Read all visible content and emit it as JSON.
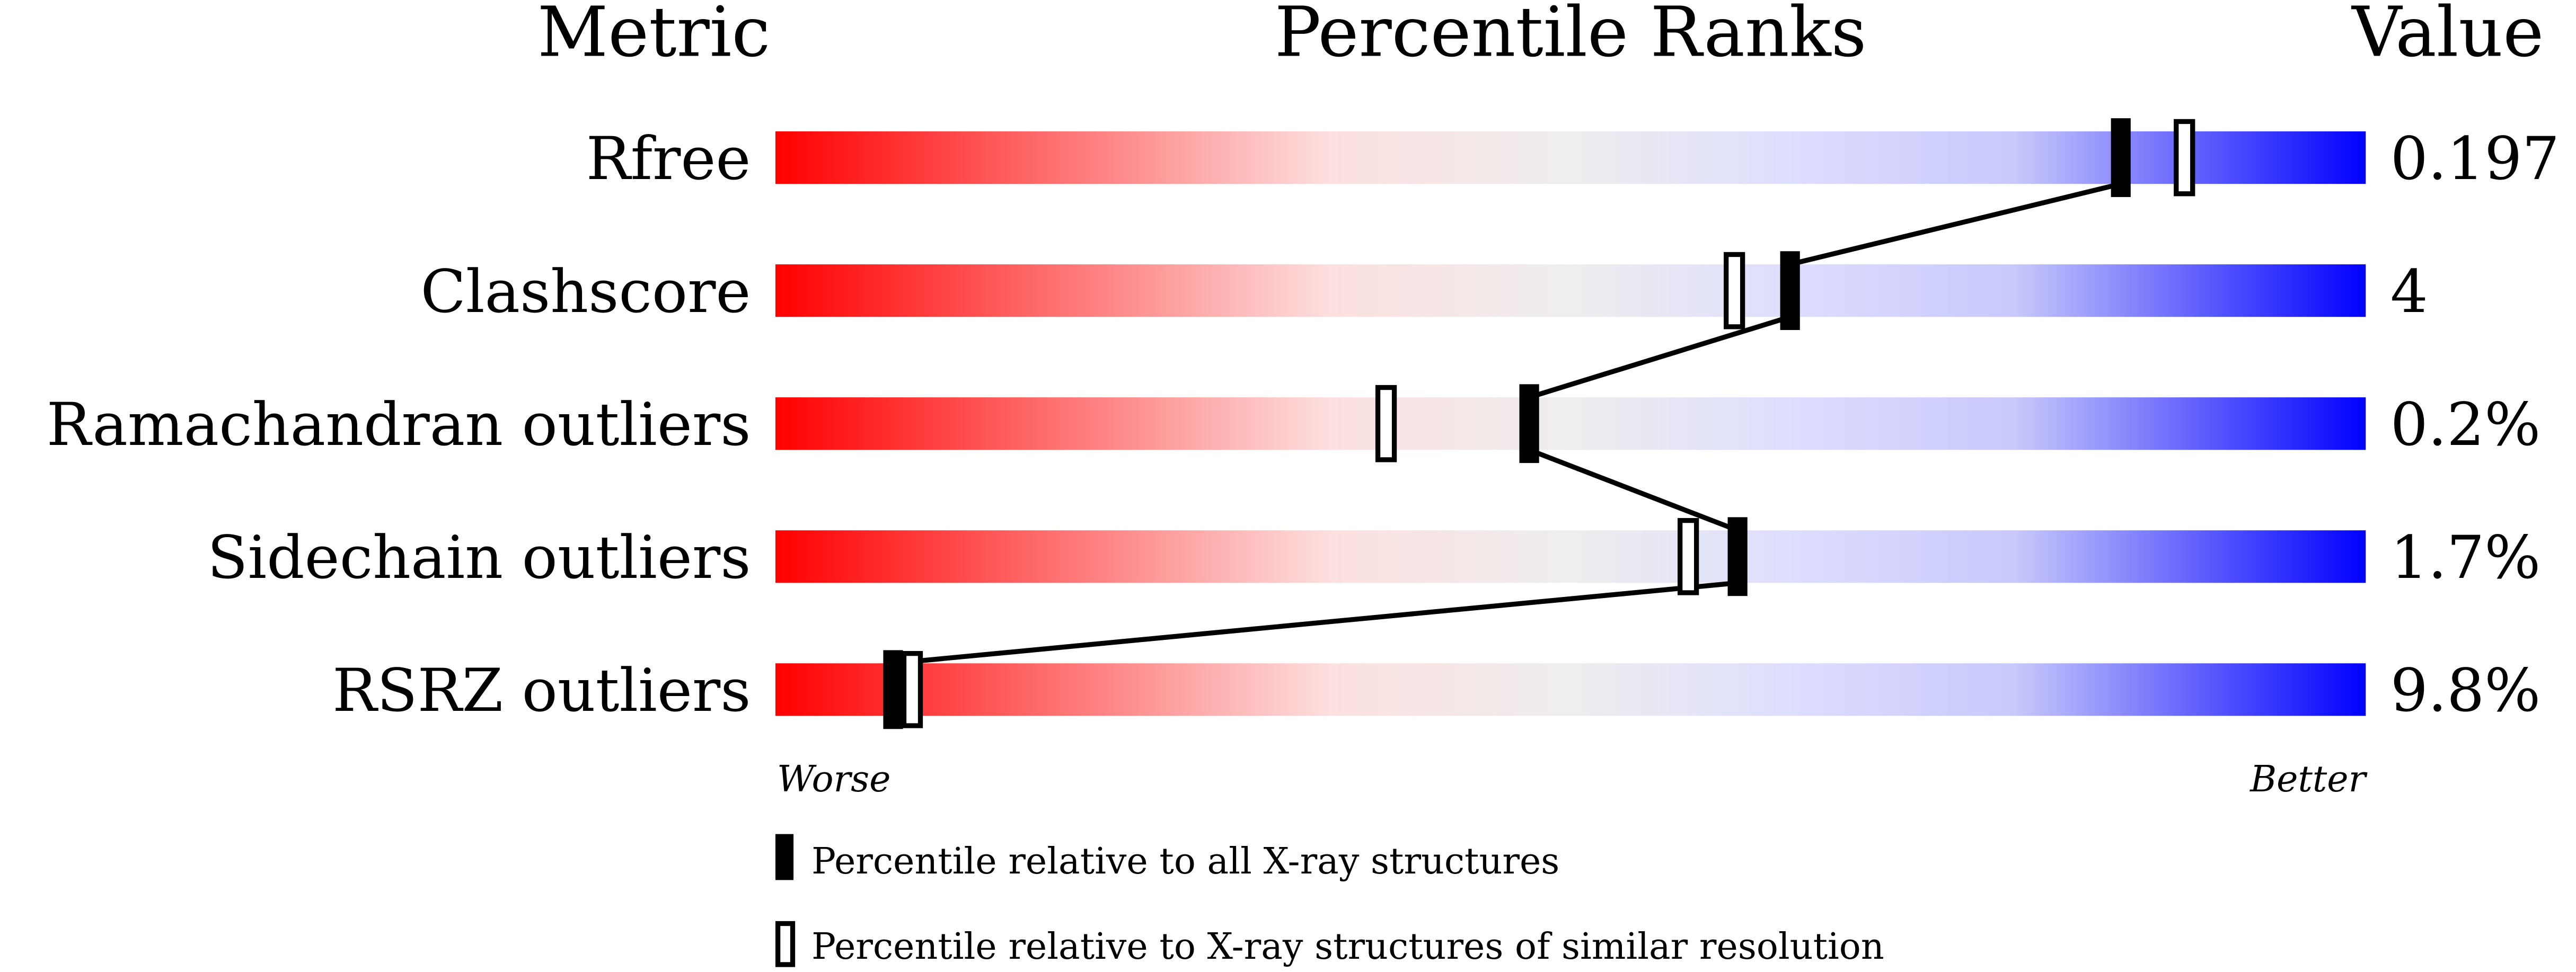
{
  "chart_data": {
    "type": "percentile-slider",
    "headers": {
      "metric": "Metric",
      "ranks": "Percentile Ranks",
      "value": "Value"
    },
    "axis": {
      "left_label": "Worse",
      "right_label": "Better",
      "range": [
        0,
        100
      ]
    },
    "metrics": [
      {
        "name": "Rfree",
        "value": "0.197",
        "percentile_all": 84.6,
        "percentile_similar": 88.6
      },
      {
        "name": "Clashscore",
        "value": "4",
        "percentile_all": 63.8,
        "percentile_similar": 60.3
      },
      {
        "name": "Ramachandran outliers",
        "value": "0.2%",
        "percentile_all": 47.4,
        "percentile_similar": 38.4
      },
      {
        "name": "Sidechain outliers",
        "value": "1.7%",
        "percentile_all": 60.5,
        "percentile_similar": 57.4
      },
      {
        "name": "RSRZ outliers",
        "value": "9.8%",
        "percentile_all": 7.4,
        "percentile_similar": 8.6
      }
    ],
    "legend": {
      "all": "Percentile relative to all X-ray structures",
      "similar": "Percentile relative to X-ray structures of similar resolution"
    },
    "colors": {
      "worse": "#ff0000",
      "mid": "#eeeeee",
      "better": "#0000ff",
      "marker": "#000000"
    }
  }
}
